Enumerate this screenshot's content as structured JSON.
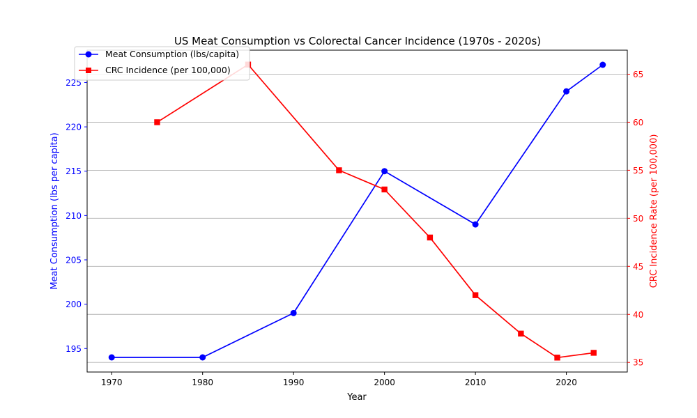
{
  "chart_data": {
    "type": "line",
    "title": "US Meat Consumption vs Colorectal Cancer Incidence (1970s - 2020s)",
    "xlabel": "Year",
    "xlim": [
      1967.3,
      2026.7
    ],
    "x_ticks": [
      "1970",
      "1980",
      "1990",
      "2000",
      "2010",
      "2020"
    ],
    "y_left": {
      "label": "Meat Consumption (lbs per capita)",
      "color": "#0000ff",
      "lim": [
        192.35,
        228.65
      ],
      "ticks": [
        "195",
        "200",
        "205",
        "210",
        "215",
        "220",
        "225"
      ]
    },
    "y_right": {
      "label": "CRC Incidence Rate (per 100,000)",
      "color": "#ff0000",
      "lim": [
        34.0,
        67.5
      ],
      "ticks": [
        "35",
        "40",
        "45",
        "50",
        "55",
        "60",
        "65"
      ]
    },
    "grid": "horizontal (right axis)",
    "legend_position": "top-left",
    "series": [
      {
        "name": "Meat Consumption (lbs/capita)",
        "axis": "left",
        "color": "#0000ff",
        "marker": "circle",
        "x": [
          1970,
          1980,
          1990,
          2000,
          2010,
          2020,
          2024
        ],
        "y": [
          194,
          194,
          199,
          215,
          209,
          224,
          227
        ]
      },
      {
        "name": "CRC Incidence (per 100,000)",
        "axis": "right",
        "color": "#ff0000",
        "marker": "square",
        "x": [
          1975,
          1985,
          1995,
          2000,
          2005,
          2010,
          2015,
          2019,
          2023
        ],
        "y": [
          60,
          66,
          55,
          53,
          48,
          42,
          38,
          35.5,
          36
        ]
      }
    ]
  }
}
